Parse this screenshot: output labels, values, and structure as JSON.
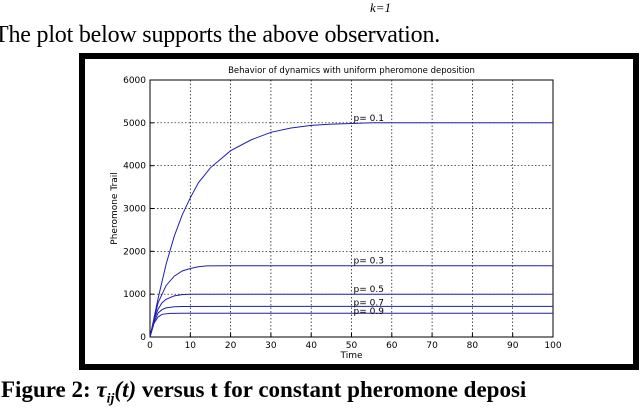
{
  "page": {
    "equation_fragment": "k=1",
    "observation": "The plot below supports the above observation.",
    "caption": {
      "prefix": "Figure 2: ",
      "tau": "τ",
      "tau_sub": "ij",
      "arg": "(t)",
      "rest": " versus t for constant pheromone deposi"
    }
  },
  "chart_data": {
    "type": "line",
    "title": "Behavior of dynamics with uniform pheromone deposition",
    "xlabel": "Time",
    "ylabel": "Pheromone Trail",
    "xlim": [
      0,
      100
    ],
    "ylim": [
      0,
      6000
    ],
    "xticks": [
      0,
      10,
      20,
      30,
      40,
      50,
      60,
      70,
      80,
      90,
      100
    ],
    "yticks": [
      0,
      1000,
      2000,
      3000,
      4000,
      5000,
      6000
    ],
    "grid": true,
    "line_color": "#1f1fb4",
    "series": [
      {
        "name": "p= 0.1",
        "x": [
          0,
          2,
          4,
          6,
          8,
          10,
          12,
          15,
          20,
          25,
          30,
          35,
          40,
          45,
          50,
          55,
          60,
          70,
          80,
          90,
          100
        ],
        "y": [
          0,
          900,
          1700,
          2350,
          2850,
          3250,
          3600,
          3950,
          4350,
          4600,
          4780,
          4880,
          4940,
          4970,
          4985,
          5000,
          5000,
          5000,
          5000,
          5000,
          5000
        ]
      },
      {
        "name": "p= 0.3",
        "x": [
          0,
          2,
          4,
          6,
          8,
          10,
          12,
          14,
          20,
          40,
          60,
          80,
          100
        ],
        "y": [
          0,
          800,
          1200,
          1420,
          1540,
          1600,
          1640,
          1660,
          1665,
          1665,
          1665,
          1665,
          1665
        ]
      },
      {
        "name": "p= 0.5",
        "x": [
          0,
          1,
          2,
          3,
          4,
          6,
          8,
          10,
          20,
          40,
          60,
          80,
          100
        ],
        "y": [
          0,
          400,
          650,
          800,
          880,
          960,
          990,
          1000,
          1000,
          1000,
          1000,
          1000,
          1000
        ]
      },
      {
        "name": "p= 0.7",
        "x": [
          0,
          1,
          2,
          3,
          4,
          6,
          8,
          20,
          40,
          60,
          80,
          100
        ],
        "y": [
          0,
          350,
          560,
          640,
          680,
          705,
          712,
          714,
          714,
          714,
          714,
          714
        ]
      },
      {
        "name": "p= 0.9",
        "x": [
          0,
          1,
          2,
          3,
          5,
          8,
          20,
          40,
          60,
          80,
          100
        ],
        "y": [
          0,
          320,
          470,
          530,
          550,
          555,
          555,
          555,
          555,
          555,
          555
        ]
      }
    ]
  }
}
